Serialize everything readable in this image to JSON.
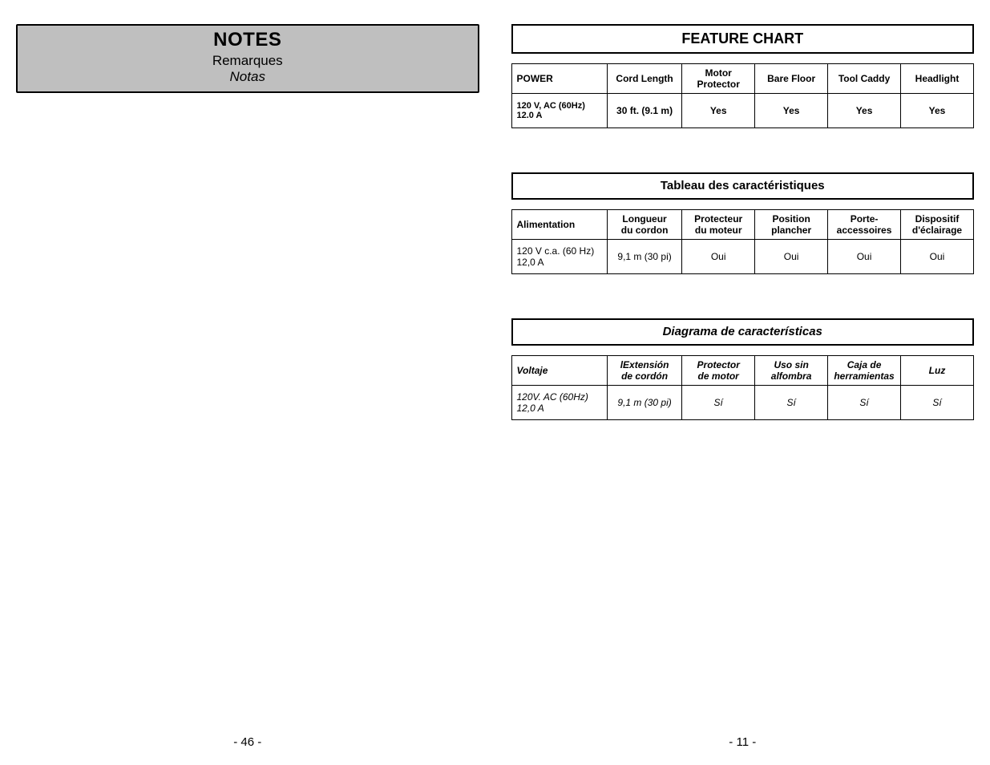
{
  "left": {
    "notes_title": "NOTES",
    "notes_sub1": "Remarques",
    "notes_sub2": "Notas",
    "page_number": "- 46 -"
  },
  "right": {
    "page_number": "- 11 -",
    "en": {
      "title": "FEATURE CHART",
      "headers": [
        "POWER",
        "Cord Length",
        "Motor\nProtector",
        "Bare Floor",
        "Tool Caddy",
        "Headlight"
      ],
      "row": [
        "120 V, AC (60Hz)\n12.0 A",
        "30 ft. (9.1 m)",
        "Yes",
        "Yes",
        "Yes",
        "Yes"
      ]
    },
    "fr": {
      "title": "Tableau des caractéristiques",
      "headers": [
        "Alimentation",
        "Longueur\ndu cordon",
        "Protecteur\ndu moteur",
        "Position\nplancher",
        "Porte-\naccessoires",
        "Dispositif\nd'éclairage"
      ],
      "row": [
        "120 V c.a. (60 Hz)\n12,0 A",
        "9,1 m (30 pi)",
        "Oui",
        "Oui",
        "Oui",
        "Oui"
      ]
    },
    "es": {
      "title": "Diagrama de características",
      "headers": [
        "Voltaje",
        "lExtensión\nde cordón",
        "Protector\nde motor",
        "Uso sin\nalfombra",
        "Caja de\nherramientas",
        "Luz"
      ],
      "row": [
        "120V. AC (60Hz)\n12,0 A",
        "9,1 m (30 pi)",
        "Sí",
        "Sí",
        "Sí",
        "Sí"
      ]
    }
  }
}
